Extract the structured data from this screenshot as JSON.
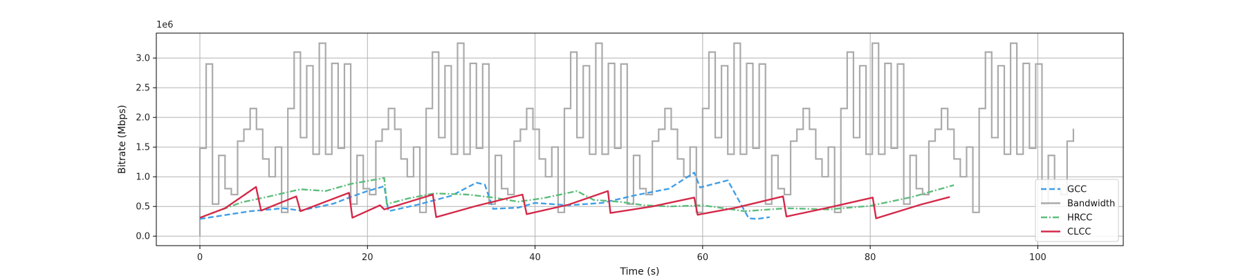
{
  "chart_data": {
    "type": "line",
    "xlabel": "Time (s)",
    "ylabel": "Bitrate (Mbps)",
    "y_offset_label": "1e6",
    "xlim": [
      -5.2,
      110.2
    ],
    "ylim": [
      -160000,
      3420000
    ],
    "x_ticks": [
      0,
      20,
      40,
      60,
      80,
      100
    ],
    "y_ticks": [
      0,
      500000,
      1000000,
      1500000,
      2000000,
      2500000,
      3000000
    ],
    "y_tick_labels": [
      "0.0",
      "0.5",
      "1.0",
      "1.5",
      "2.0",
      "2.5",
      "3.0"
    ],
    "grid": true,
    "legend_position": "lower-right",
    "legend_order": [
      "GCC",
      "Bandwidth",
      "HRCC",
      "CLCC"
    ],
    "bandwidth_pattern": [
      1480000,
      2900000,
      540000,
      1360000,
      800000,
      700000,
      1600000,
      1800000,
      2150000,
      1800000,
      1300000,
      1000000,
      1500000,
      400000,
      2150000,
      3100000,
      1660000,
      2870000,
      1380000,
      3250000,
      1380000,
      2910000
    ],
    "bandwidth_step_s": 0.75,
    "series": [
      {
        "name": "GCC",
        "color": "#3f9ee8",
        "dash": "8,4",
        "x": [
          0,
          6,
          10,
          12,
          16,
          18,
          20,
          22,
          22.5,
          26,
          30,
          33,
          34,
          35,
          38,
          40,
          44,
          48,
          52,
          56,
          59,
          59.7,
          63,
          65.5,
          66.5,
          68
        ],
        "y": [
          290000,
          420000,
          470000,
          430000,
          550000,
          660000,
          760000,
          840000,
          420000,
          530000,
          680000,
          900000,
          870000,
          460000,
          480000,
          560000,
          520000,
          560000,
          690000,
          800000,
          1070000,
          820000,
          940000,
          300000,
          290000,
          320000
        ]
      },
      {
        "name": "HRCC",
        "color": "#5cbd7b",
        "dash": "9,3,2,3",
        "x": [
          0,
          5,
          8,
          12,
          15,
          18,
          22,
          22.3,
          25,
          28,
          32,
          35,
          38,
          41,
          45,
          47,
          50,
          53,
          56,
          60,
          65,
          70,
          75,
          80,
          85,
          90
        ],
        "y": [
          310000,
          570000,
          660000,
          790000,
          760000,
          880000,
          980000,
          540000,
          640000,
          720000,
          700000,
          650000,
          580000,
          640000,
          760000,
          610000,
          580000,
          520000,
          500000,
          520000,
          420000,
          470000,
          450000,
          510000,
          660000,
          860000
        ]
      },
      {
        "name": "CLCC",
        "color": "#d42848",
        "dash": "",
        "x": [
          0,
          3,
          6.7,
          7.3,
          11.5,
          12,
          17.8,
          18.2,
          21.5,
          22,
          27.8,
          28.2,
          33,
          38.5,
          39,
          44,
          48.7,
          49,
          54,
          59,
          59.4,
          64,
          69.6,
          70,
          75,
          80.3,
          80.7,
          86,
          89.5
        ],
        "y": [
          310000,
          470000,
          830000,
          430000,
          670000,
          420000,
          730000,
          310000,
          520000,
          450000,
          700000,
          320000,
          510000,
          700000,
          370000,
          530000,
          760000,
          390000,
          500000,
          650000,
          360000,
          480000,
          670000,
          330000,
          480000,
          650000,
          300000,
          530000,
          660000
        ]
      }
    ]
  }
}
